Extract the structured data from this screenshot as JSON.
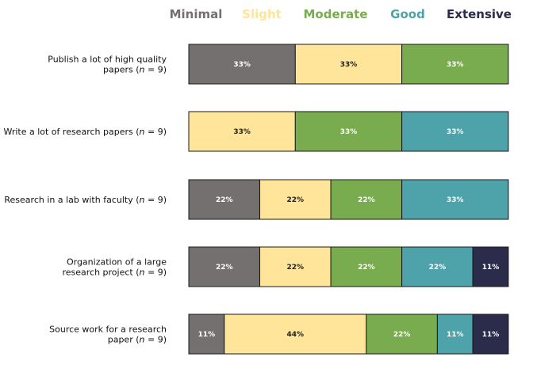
{
  "chart_data": {
    "type": "bar",
    "orientation": "horizontal",
    "stacked": true,
    "legend_position": "top-right",
    "grid": false,
    "xlim": [
      0,
      100
    ],
    "unit": "%",
    "categories": [
      {
        "lines": [
          [
            "Publish a lot of high quality"
          ],
          [
            "papers (",
            {
              "i": "n"
            },
            " = 9)"
          ]
        ]
      },
      {
        "lines": [
          [
            "Write a lot of research papers (",
            {
              "i": "n"
            },
            " = 9)"
          ]
        ]
      },
      {
        "lines": [
          [
            "Research in a lab with faculty (",
            {
              "i": "n"
            },
            " = 9)"
          ]
        ]
      },
      {
        "lines": [
          [
            "Organization of a large"
          ],
          [
            "research project (",
            {
              "i": "n"
            },
            " = 9)"
          ]
        ]
      },
      {
        "lines": [
          [
            "Source work for a research"
          ],
          [
            "paper (",
            {
              "i": "n"
            },
            " = 9)"
          ]
        ]
      }
    ],
    "series": [
      {
        "name": "Minimal",
        "color": "#757070",
        "label_color": "#ffffff",
        "values": [
          33,
          0,
          22,
          22,
          11
        ]
      },
      {
        "name": "Slight",
        "color": "#fee599",
        "label_color": "#222222",
        "values": [
          33,
          33,
          22,
          22,
          44
        ]
      },
      {
        "name": "Moderate",
        "color": "#79ac4f",
        "label_color": "#ffffff",
        "values": [
          33,
          33,
          22,
          22,
          22
        ]
      },
      {
        "name": "Good",
        "color": "#4da3a9",
        "label_color": "#ffffff",
        "values": [
          0,
          33,
          33,
          22,
          11
        ]
      },
      {
        "name": "Extensive",
        "color": "#2b2b4b",
        "label_color": "#ffffff",
        "values": [
          0,
          0,
          0,
          11,
          11
        ]
      }
    ]
  }
}
